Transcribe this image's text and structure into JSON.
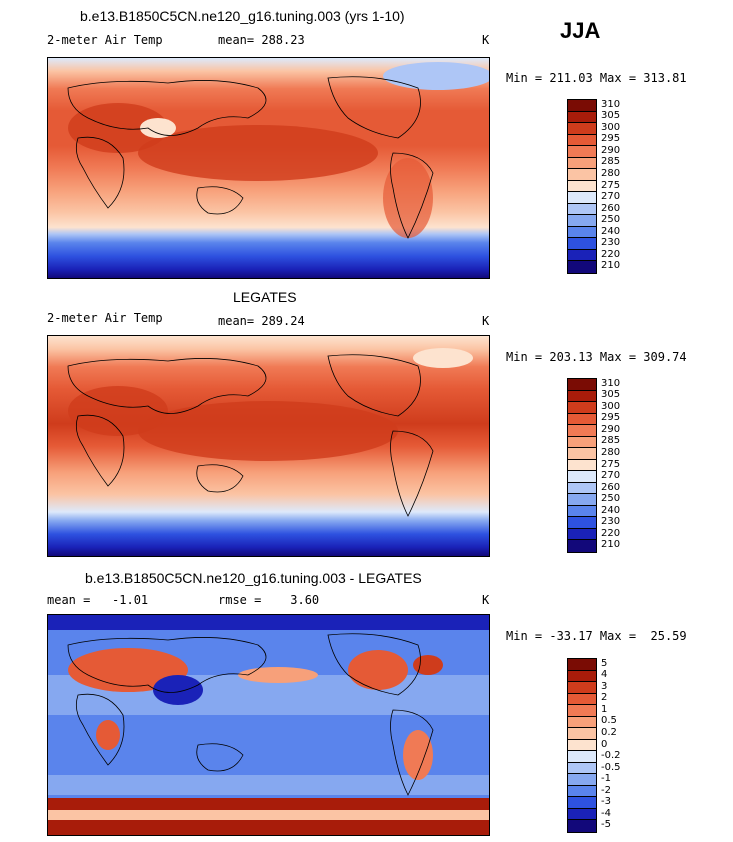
{
  "season": "JJA",
  "palette": {
    "abs": [
      "#12087a",
      "#1a22b8",
      "#2e52e0",
      "#5a84ec",
      "#86a8f0",
      "#aec6f6",
      "#dde9fb",
      "#fde3cf",
      "#fbc4a4",
      "#f7a07a",
      "#f07a55",
      "#e55a36",
      "#cf3c1c",
      "#a81c0a",
      "#7a0c04"
    ],
    "diff": [
      "#12087a",
      "#1a22b8",
      "#2e52e0",
      "#5a84ec",
      "#86a8f0",
      "#aec6f6",
      "#dde9fb",
      "#fde3cf",
      "#fbc4a4",
      "#f7a07a",
      "#f07a55",
      "#e55a36",
      "#cf3c1c",
      "#a81c0a",
      "#7a0c04"
    ]
  },
  "panels": [
    {
      "title": "b.e13.B1850C5CN.ne120_g16.tuning.003 (yrs 1-10)",
      "left_label": "2-meter Air Temp",
      "stat_text": "mean= 288.23",
      "units": "K",
      "minmax": "Min = 211.03 Max = 313.81",
      "ticks": [
        "310",
        "305",
        "300",
        "295",
        "290",
        "285",
        "280",
        "275",
        "270",
        "260",
        "250",
        "240",
        "230",
        "220",
        "210"
      ]
    },
    {
      "title": "LEGATES",
      "left_label": "2-meter Air Temp",
      "stat_text": "mean= 289.24",
      "units": "K",
      "minmax": "Min = 203.13 Max = 309.74",
      "ticks": [
        "310",
        "305",
        "300",
        "295",
        "290",
        "285",
        "280",
        "275",
        "270",
        "260",
        "250",
        "240",
        "230",
        "220",
        "210"
      ]
    },
    {
      "title": "b.e13.B1850C5CN.ne120_g16.tuning.003 - LEGATES",
      "left_label": "mean =   -1.01",
      "stat_text": "rmse =    3.60",
      "units": "K",
      "minmax": "Min = -33.17 Max =  25.59",
      "ticks": [
        "5",
        "4",
        "3",
        "2",
        "1",
        "0.5",
        "0.2",
        "0",
        "-0.2",
        "-0.5",
        "-1",
        "-2",
        "-3",
        "-4",
        "-5"
      ]
    }
  ],
  "chart_data": [
    {
      "type": "heatmap",
      "title": "b.e13.B1850C5CN.ne120_g16.tuning.003 (yrs 1-10)",
      "variable": "2-meter Air Temp",
      "units": "K",
      "mean": 288.23,
      "min": 211.03,
      "max": 313.81,
      "levels": [
        210,
        220,
        230,
        240,
        250,
        260,
        270,
        275,
        280,
        285,
        290,
        295,
        300,
        305,
        310
      ],
      "projection": "cylindrical equidistant, 0E centered"
    },
    {
      "type": "heatmap",
      "title": "LEGATES",
      "variable": "2-meter Air Temp",
      "units": "K",
      "mean": 289.24,
      "min": 203.13,
      "max": 309.74,
      "levels": [
        210,
        220,
        230,
        240,
        250,
        260,
        270,
        275,
        280,
        285,
        290,
        295,
        300,
        305,
        310
      ]
    },
    {
      "type": "heatmap",
      "title": "b.e13.B1850C5CN.ne120_g16.tuning.003 - LEGATES",
      "units": "K",
      "mean": -1.01,
      "rmse": 3.6,
      "min": -33.17,
      "max": 25.59,
      "levels": [
        -5,
        -4,
        -3,
        -2,
        -1,
        -0.5,
        -0.2,
        0,
        0.2,
        0.5,
        1,
        2,
        3,
        4,
        5
      ]
    }
  ]
}
